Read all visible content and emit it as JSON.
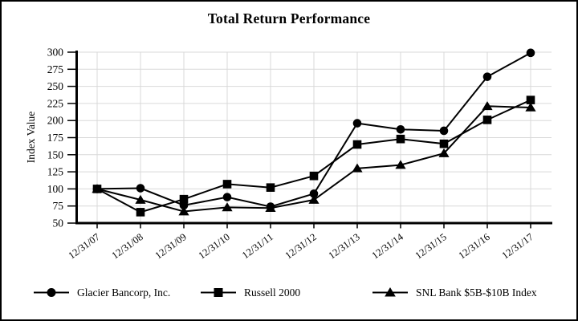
{
  "header": {
    "title": "Total Return Performance"
  },
  "chart_data": {
    "type": "line",
    "title": "Total Return Performance",
    "xlabel": "",
    "ylabel": "Index Value",
    "ylim": [
      50,
      300
    ],
    "ytick_step": 25,
    "grid": true,
    "legend_position": "bottom",
    "categories": [
      "12/31/07",
      "12/31/08",
      "12/31/09",
      "12/31/10",
      "12/31/11",
      "12/31/12",
      "12/31/13",
      "12/31/14",
      "12/31/15",
      "12/31/16",
      "12/31/17"
    ],
    "series": [
      {
        "name": "Glacier Bancorp, Inc.",
        "marker": "circle",
        "color": "#000000",
        "values": [
          100,
          101,
          76,
          88,
          74,
          93,
          196,
          187,
          185,
          264,
          299
        ]
      },
      {
        "name": "Russell 2000",
        "marker": "square",
        "color": "#000000",
        "values": [
          100,
          66,
          85,
          107,
          102,
          119,
          165,
          173,
          166,
          201,
          230
        ]
      },
      {
        "name": "SNL Bank $5B-$10B Index",
        "marker": "triangle",
        "color": "#000000",
        "values": [
          100,
          84,
          67,
          73,
          72,
          84,
          130,
          135,
          152,
          221,
          219
        ]
      }
    ]
  },
  "colors": {
    "background": "#ffffff",
    "axis": "#000000",
    "grid": "#d9d9d9",
    "text": "#000000",
    "border": "#000000"
  }
}
